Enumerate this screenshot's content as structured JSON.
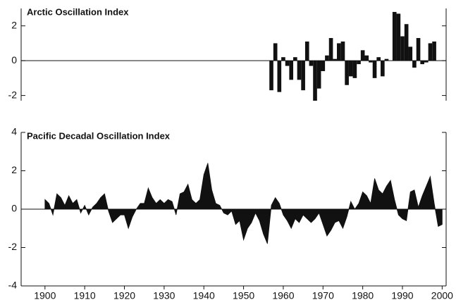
{
  "chart_data": [
    {
      "type": "bar",
      "title": "Arctic Oscillation Index",
      "color": "#111111",
      "xlim": [
        1894,
        2001
      ],
      "ylim": [
        -2.3,
        3.0
      ],
      "yticks": [
        -2,
        0,
        2
      ],
      "x": [
        1957,
        1958,
        1959,
        1960,
        1961,
        1962,
        1963,
        1964,
        1965,
        1966,
        1967,
        1968,
        1969,
        1970,
        1971,
        1972,
        1973,
        1974,
        1975,
        1976,
        1977,
        1978,
        1979,
        1980,
        1981,
        1982,
        1983,
        1984,
        1985,
        1986,
        1987,
        1988,
        1989,
        1990,
        1991,
        1992,
        1993,
        1994,
        1995,
        1996,
        1997,
        1998
      ],
      "values": [
        -1.7,
        1.0,
        -1.8,
        0.2,
        -0.3,
        -1.1,
        0.2,
        -1.1,
        -1.7,
        1.1,
        -0.3,
        -2.3,
        -1.6,
        -0.6,
        0.3,
        1.3,
        0.1,
        1.0,
        1.1,
        -1.4,
        -0.9,
        -1.0,
        -0.2,
        0.6,
        0.3,
        -0.1,
        -1.0,
        0.2,
        -0.9,
        0.1,
        0.0,
        2.8,
        2.7,
        1.4,
        2.1,
        0.8,
        -0.4,
        1.3,
        -0.2,
        -0.1,
        1.0,
        1.1
      ]
    },
    {
      "type": "area",
      "title": "Pacific Decadal Oscillation Index",
      "color": "#111111",
      "xlim": [
        1894,
        2001
      ],
      "ylim": [
        -4,
        4
      ],
      "yticks": [
        -4,
        -2,
        0,
        2,
        4
      ],
      "xticks": [
        1900,
        1910,
        1920,
        1930,
        1940,
        1950,
        1960,
        1970,
        1980,
        1990,
        2000
      ],
      "x": [
        1900,
        1901,
        1902,
        1903,
        1904,
        1905,
        1906,
        1907,
        1908,
        1909,
        1910,
        1911,
        1912,
        1913,
        1914,
        1915,
        1916,
        1917,
        1918,
        1919,
        1920,
        1921,
        1922,
        1923,
        1924,
        1925,
        1926,
        1927,
        1928,
        1929,
        1930,
        1931,
        1932,
        1933,
        1934,
        1935,
        1936,
        1937,
        1938,
        1939,
        1940,
        1941,
        1942,
        1943,
        1944,
        1945,
        1946,
        1947,
        1948,
        1949,
        1950,
        1951,
        1952,
        1953,
        1954,
        1955,
        1956,
        1957,
        1958,
        1959,
        1960,
        1961,
        1962,
        1963,
        1964,
        1965,
        1966,
        1967,
        1968,
        1969,
        1970,
        1971,
        1972,
        1973,
        1974,
        1975,
        1976,
        1977,
        1978,
        1979,
        1980,
        1981,
        1982,
        1983,
        1984,
        1985,
        1986,
        1987,
        1988,
        1989,
        1990,
        1991,
        1992,
        1993,
        1994,
        1995,
        1996,
        1997,
        1998,
        1999,
        2000
      ],
      "values": [
        0.5,
        0.3,
        -0.3,
        0.8,
        0.6,
        0.2,
        0.7,
        0.3,
        0.5,
        -0.2,
        0.2,
        -0.3,
        0.1,
        0.3,
        0.6,
        0.8,
        -0.1,
        -0.7,
        -0.5,
        -0.3,
        -0.3,
        -1.0,
        -0.4,
        0.0,
        0.3,
        0.3,
        1.1,
        0.6,
        0.3,
        0.5,
        0.3,
        0.5,
        0.4,
        -0.3,
        0.8,
        0.9,
        1.3,
        0.5,
        0.3,
        0.5,
        1.8,
        2.4,
        1.0,
        0.3,
        0.2,
        -0.2,
        -0.3,
        -0.1,
        -0.8,
        -0.6,
        -1.6,
        -1.0,
        -0.7,
        -0.2,
        -0.6,
        -1.3,
        -1.8,
        0.2,
        0.6,
        0.3,
        -0.3,
        -0.6,
        -1.0,
        -0.5,
        -0.7,
        -0.3,
        -0.5,
        -0.7,
        -0.5,
        -0.2,
        -0.8,
        -1.4,
        -1.1,
        -0.7,
        -0.6,
        -1.0,
        -0.4,
        0.4,
        0.0,
        0.3,
        0.9,
        0.7,
        0.3,
        1.6,
        1.0,
        0.8,
        1.2,
        1.5,
        0.5,
        -0.3,
        -0.5,
        -0.6,
        0.9,
        1.0,
        0.1,
        0.7,
        1.2,
        1.7,
        0.3,
        -0.9,
        -0.8
      ]
    }
  ]
}
